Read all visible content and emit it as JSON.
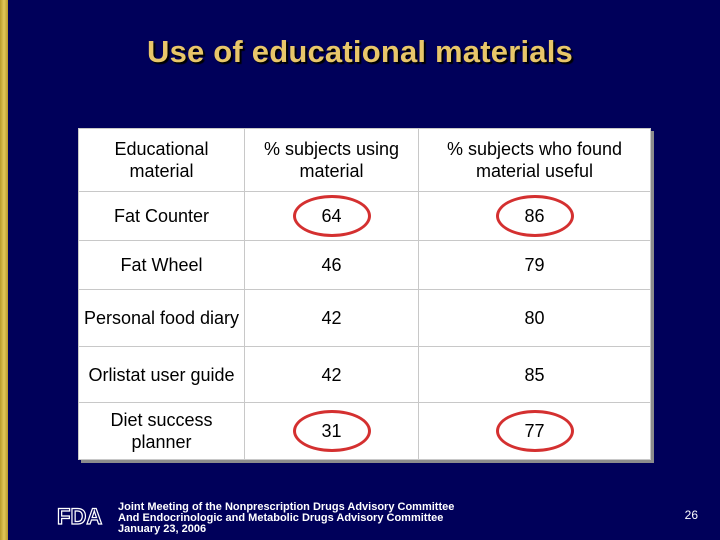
{
  "slide": {
    "title": "Use of educational materials",
    "page_number": "26"
  },
  "table": {
    "headers": [
      "Educational material",
      "% subjects using material",
      "% subjects who found material useful"
    ],
    "rows": [
      {
        "material": "Fat Counter",
        "using": "64",
        "useful": "86",
        "circled": true
      },
      {
        "material": "Fat Wheel",
        "using": "46",
        "useful": "79",
        "circled": false
      },
      {
        "material": "Personal food diary",
        "using": "42",
        "useful": "80",
        "circled": false
      },
      {
        "material": "Orlistat user guide",
        "using": "42",
        "useful": "85",
        "circled": false
      },
      {
        "material": "Diet success planner",
        "using": "31",
        "useful": "77",
        "circled": true
      }
    ]
  },
  "footer": {
    "logo_text": "FDA",
    "line1": "Joint Meeting of the Nonprescription Drugs Advisory Committee",
    "line2": "And Endocrinologic and Metabolic Drugs Advisory Committee",
    "line3": "January 23, 2006"
  },
  "colors": {
    "background": "#00005a",
    "title": "#e8c66a",
    "highlight_circle": "#d43030"
  }
}
